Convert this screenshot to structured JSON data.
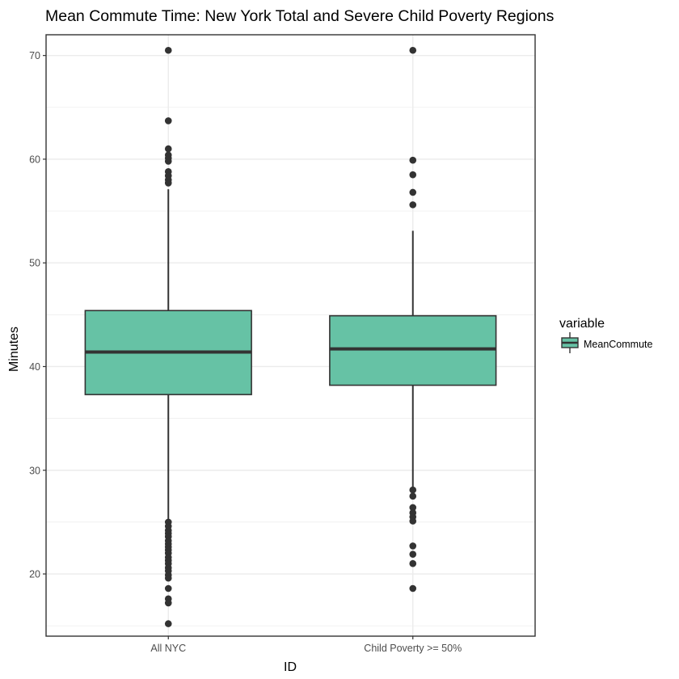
{
  "chart_data": {
    "type": "boxplot",
    "title": "Mean Commute Time: New York Total and Severe Child Poverty Regions",
    "xlabel": "ID",
    "ylabel": "Minutes",
    "categories": [
      "All NYC",
      "Child Poverty >= 50%"
    ],
    "ylim": [
      14,
      72
    ],
    "yticks": [
      20,
      30,
      40,
      50,
      60,
      70
    ],
    "grid": true,
    "fill_color": "#66c2a5",
    "line_color": "#333333",
    "legend": {
      "title": "variable",
      "entries": [
        "MeanCommute"
      ],
      "position": "right"
    },
    "series": [
      {
        "name": "MeanCommute",
        "boxes": [
          {
            "category": "All NYC",
            "q1": 37.3,
            "median": 41.4,
            "q3": 45.4,
            "whisker_low": 25.2,
            "whisker_high": 57.1,
            "outliers": [
              70.5,
              63.7,
              61.0,
              60.4,
              60.1,
              59.8,
              58.8,
              58.4,
              58.0,
              57.7,
              25.0,
              24.6,
              24.2,
              23.9,
              23.6,
              23.2,
              22.9,
              22.6,
              22.3,
              22.0,
              21.6,
              21.3,
              21.0,
              20.6,
              20.3,
              19.9,
              19.6,
              18.6,
              17.6,
              17.2,
              15.2
            ]
          },
          {
            "category": "Child Poverty >= 50%",
            "q1": 38.2,
            "median": 41.7,
            "q3": 44.9,
            "whisker_low": 28.3,
            "whisker_high": 53.1,
            "outliers": [
              70.5,
              59.9,
              58.5,
              56.8,
              55.6,
              28.1,
              27.5,
              26.4,
              25.9,
              25.5,
              25.1,
              22.7,
              21.9,
              21.0,
              18.6
            ]
          }
        ]
      }
    ]
  }
}
